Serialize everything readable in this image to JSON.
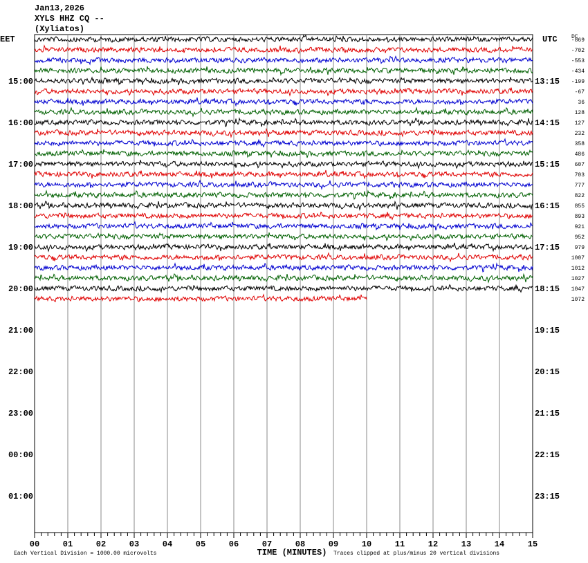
{
  "header": {
    "date": "Jan13,2026",
    "station": "XYLS HHZ CQ --",
    "site": "(Xyliatos)"
  },
  "left_axis": {
    "title": "EET",
    "labels": [
      "15:00",
      "16:00",
      "17:00",
      "18:00",
      "19:00",
      "20:00",
      "21:00",
      "22:00",
      "23:00",
      "00:00",
      "01:00"
    ]
  },
  "right_axis": {
    "title": "UTC",
    "labels": [
      "13:15",
      "14:15",
      "15:15",
      "16:15",
      "17:15",
      "18:15",
      "19:15",
      "20:15",
      "21:15",
      "22:15",
      "23:15"
    ]
  },
  "dc": {
    "title": "DC",
    "values": [
      "-869",
      "-702",
      "-553",
      "-434",
      "-199",
      "-67",
      "36",
      "128",
      "127",
      "232",
      "358",
      "486",
      "607",
      "703",
      "777",
      "822",
      "855",
      "893",
      "921",
      "952",
      "979",
      "1007",
      "1012",
      "1027",
      "1047",
      "1072"
    ]
  },
  "trace_colors": [
    "#000000",
    "#e00000",
    "#0000d0",
    "#006000"
  ],
  "x_axis": {
    "title": "TIME (MINUTES)",
    "labels": [
      "00",
      "01",
      "02",
      "03",
      "04",
      "05",
      "06",
      "07",
      "08",
      "09",
      "10",
      "11",
      "12",
      "13",
      "14",
      "15"
    ]
  },
  "footer": {
    "left": "Each Vertical Division = 1000.00 microvolts",
    "right": "Traces clipped at plus/minus 20 vertical divisions"
  }
}
